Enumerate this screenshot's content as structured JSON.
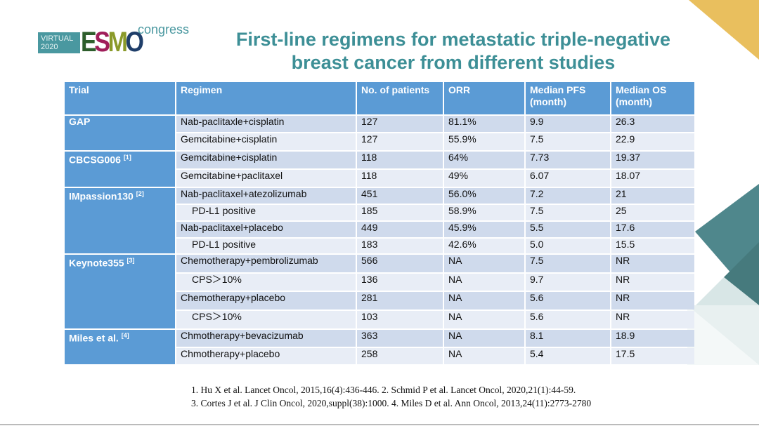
{
  "logo": {
    "virtual": "VIRTUAL",
    "year": "2020",
    "esmo": [
      "E",
      "S",
      "M",
      "O"
    ],
    "congress": "congress"
  },
  "title_line1": "First-line regimens for metastatic triple-negative",
  "title_line2": "breast cancer from different studies",
  "colors": {
    "title": "#3d8f96",
    "header": "#5b9bd5",
    "row_dark": "#cfdaec",
    "row_light": "#e8edf6",
    "gold": "#e9bf5e",
    "teal": "#4f878c"
  },
  "table": {
    "headers": [
      "Trial",
      "Regimen",
      "No. of patients",
      "ORR",
      "Median PFS (month)",
      "Median OS (month)"
    ],
    "groups": [
      {
        "trial": "GAP",
        "ref": "",
        "rows": [
          {
            "regimen": "Nab-paclitaxle+cisplatin",
            "indent": false,
            "n": "127",
            "orr": "81.1%",
            "pfs": "9.9",
            "os": "26.3"
          },
          {
            "regimen": "Gemcitabine+cisplatin",
            "indent": false,
            "n": "127",
            "orr": "55.9%",
            "pfs": "7.5",
            "os": "22.9"
          }
        ]
      },
      {
        "trial": "CBCSG006",
        "ref": "[1]",
        "rows": [
          {
            "regimen": "Gemcitabine+cisplatin",
            "indent": false,
            "n": "118",
            "orr": "64%",
            "pfs": "7.73",
            "os": "19.37"
          },
          {
            "regimen": "Gemcitabine+paclitaxel",
            "indent": false,
            "n": "118",
            "orr": "49%",
            "pfs": "6.07",
            "os": "18.07"
          }
        ]
      },
      {
        "trial": "IMpassion130",
        "ref": "[2]",
        "rows": [
          {
            "regimen": "Nab-paclitaxel+atezolizumab",
            "indent": false,
            "n": "451",
            "orr": "56.0%",
            "pfs": "7.2",
            "os": "21"
          },
          {
            "regimen": "PD-L1 positive",
            "indent": true,
            "n": "185",
            "orr": "58.9%",
            "pfs": "7.5",
            "os": "25"
          },
          {
            "regimen": "Nab-paclitaxel+placebo",
            "indent": false,
            "n": "449",
            "orr": "45.9%",
            "pfs": "5.5",
            "os": "17.6"
          },
          {
            "regimen": "PD-L1 positive",
            "indent": true,
            "n": "183",
            "orr": "42.6%",
            "pfs": "5.0",
            "os": "15.5"
          }
        ]
      },
      {
        "trial": "Keynote355",
        "ref": "[3]",
        "rows": [
          {
            "regimen": "Chemotherapy+pembrolizumab",
            "indent": false,
            "n": "566",
            "orr": "NA",
            "pfs": "7.5",
            "os": "NR"
          },
          {
            "regimen": "CPS＞10%",
            "indent": true,
            "n": "136",
            "orr": "NA",
            "pfs": "9.7",
            "os": "NR"
          },
          {
            "regimen": "Chemotherapy+placebo",
            "indent": false,
            "n": "281",
            "orr": "NA",
            "pfs": "5.6",
            "os": "NR"
          },
          {
            "regimen": "CPS＞10%",
            "indent": true,
            "n": "103",
            "orr": "NA",
            "pfs": "5.6",
            "os": "NR"
          }
        ]
      },
      {
        "trial": "Miles et al.",
        "ref": "[4]",
        "rows": [
          {
            "regimen": "Chmotherapy+bevacizumab",
            "indent": false,
            "n": "363",
            "orr": "NA",
            "pfs": "8.1",
            "os": "18.9"
          },
          {
            "regimen": "Chmotherapy+placebo",
            "indent": false,
            "n": "258",
            "orr": "NA",
            "pfs": "5.4",
            "os": "17.5"
          }
        ]
      }
    ]
  },
  "references": [
    "1. Hu X et al. Lancet Oncol, 2015,16(4):436-446.   2. Schmid P et al. Lancet Oncol, 2020,21(1):44-59.",
    "3. Cortes J et al. J Clin Oncol, 2020,suppl(38):1000.  4. Miles D et al. Ann Oncol, 2013,24(11):2773-2780"
  ]
}
